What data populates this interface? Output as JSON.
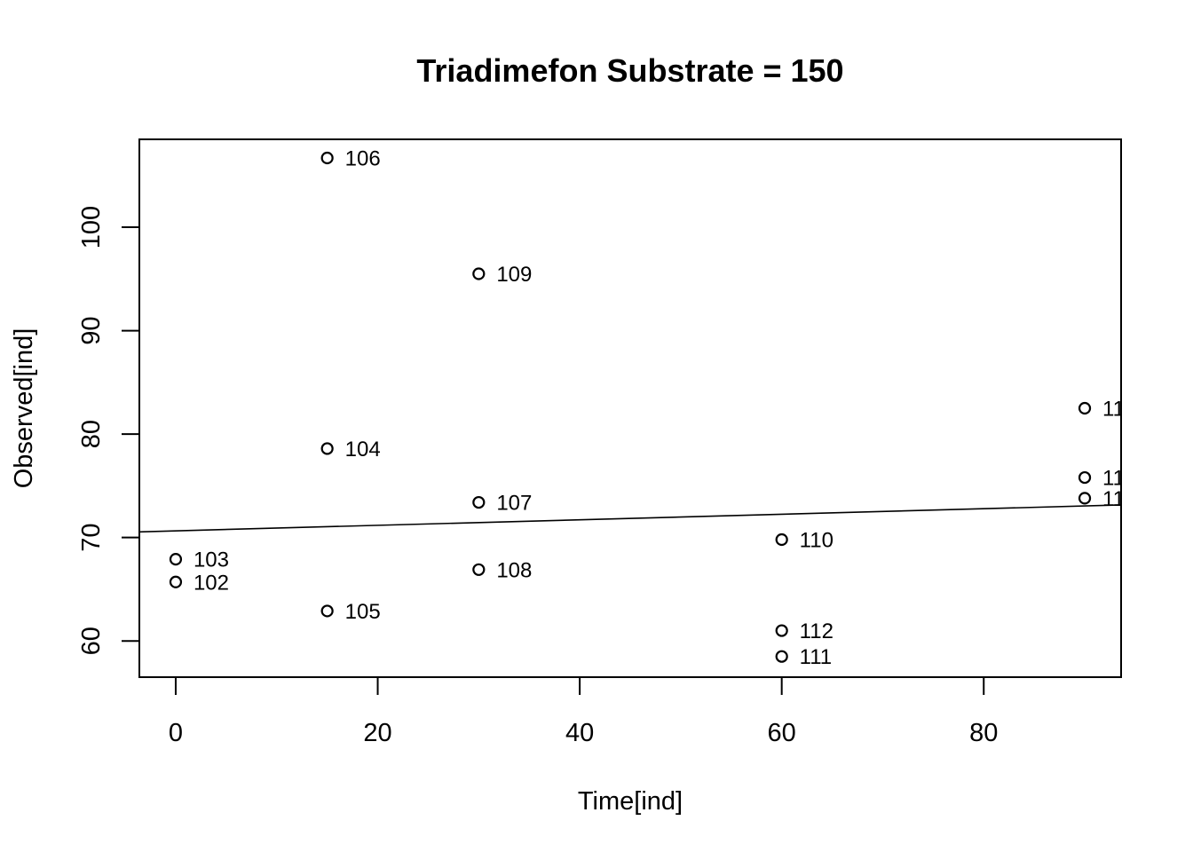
{
  "chart_data": {
    "type": "scatter",
    "title": "Triadimefon Substrate = 150",
    "xlabel": "Time[ind]",
    "ylabel": "Observed[ind]",
    "xlim": [
      -3.6,
      93.6
    ],
    "ylim": [
      56.5,
      108.5
    ],
    "xticks": [
      0,
      20,
      40,
      60,
      80
    ],
    "yticks": [
      60,
      70,
      80,
      90,
      100
    ],
    "grid": false,
    "points": [
      {
        "x": 0,
        "y": 65.7,
        "label": "102"
      },
      {
        "x": 0,
        "y": 67.9,
        "label": "103"
      },
      {
        "x": 15,
        "y": 78.6,
        "label": "104"
      },
      {
        "x": 15,
        "y": 62.9,
        "label": "105"
      },
      {
        "x": 15,
        "y": 106.7,
        "label": "106"
      },
      {
        "x": 30,
        "y": 73.4,
        "label": "107"
      },
      {
        "x": 30,
        "y": 66.9,
        "label": "108"
      },
      {
        "x": 30,
        "y": 95.5,
        "label": "109"
      },
      {
        "x": 60,
        "y": 69.8,
        "label": "110"
      },
      {
        "x": 60,
        "y": 58.5,
        "label": "111"
      },
      {
        "x": 60,
        "y": 61.0,
        "label": "112"
      },
      {
        "x": 90,
        "y": 82.5,
        "label": "11"
      },
      {
        "x": 90,
        "y": 75.8,
        "label": "11"
      },
      {
        "x": 90,
        "y": 73.8,
        "label": "11"
      }
    ],
    "fit_line": {
      "x": [
        -3.6,
        93.6
      ],
      "y": [
        70.55,
        73.15
      ]
    }
  }
}
